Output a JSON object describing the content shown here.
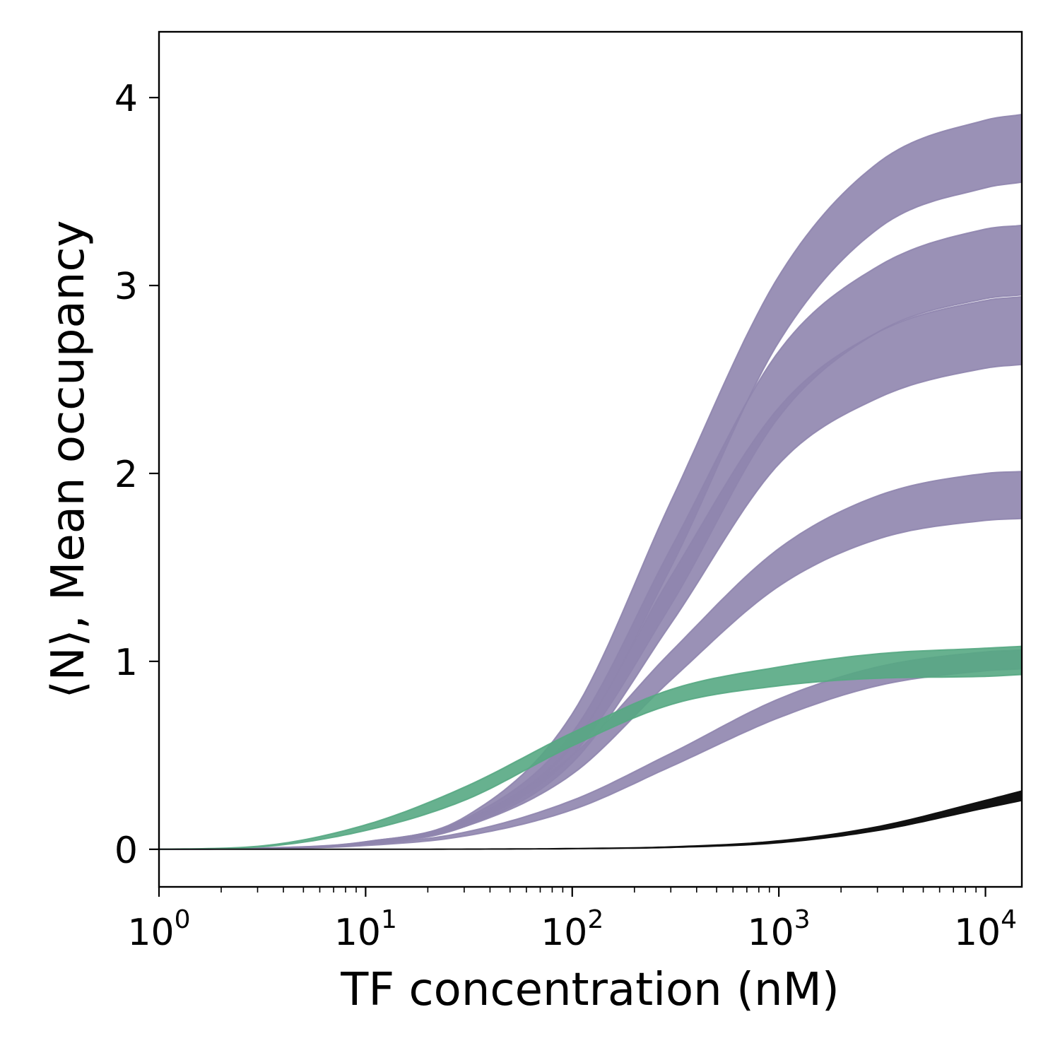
{
  "chart_data": {
    "type": "area",
    "xlabel": "TF concentration (nM)",
    "ylabel": "⟨N⟩, Mean occupancy",
    "xscale": "log",
    "xlim": [
      1,
      15000
    ],
    "ylim": [
      -0.2,
      4.35
    ],
    "grid": false,
    "x_ticks": [
      {
        "value": 1,
        "base": "10",
        "exp": "0"
      },
      {
        "value": 10,
        "base": "10",
        "exp": "1"
      },
      {
        "value": 100,
        "base": "10",
        "exp": "2"
      },
      {
        "value": 1000,
        "base": "10",
        "exp": "3"
      },
      {
        "value": 10000,
        "base": "10",
        "exp": "4"
      }
    ],
    "y_ticks": [
      {
        "value": 0,
        "label": "0"
      },
      {
        "value": 1,
        "label": "1"
      },
      {
        "value": 2,
        "label": "2"
      },
      {
        "value": 3,
        "label": "3"
      },
      {
        "value": 4,
        "label": "4"
      }
    ],
    "colors": {
      "purple": "#8f85ae",
      "green": "#56a883",
      "black": "#111111"
    },
    "x": [
      1,
      3,
      10,
      30,
      100,
      300,
      1000,
      3000,
      10000,
      15000
    ],
    "series": [
      {
        "color": "purple",
        "opacity": 0.9,
        "lower": [
          0,
          0.004,
          0.03,
          0.14,
          0.55,
          1.5,
          2.7,
          3.3,
          3.52,
          3.55
        ],
        "upper": [
          0,
          0.006,
          0.04,
          0.17,
          0.72,
          1.85,
          3.05,
          3.65,
          3.88,
          3.91
        ]
      },
      {
        "color": "purple",
        "opacity": 0.9,
        "lower": [
          0,
          0.004,
          0.03,
          0.13,
          0.5,
          1.3,
          2.3,
          2.75,
          2.93,
          2.95
        ],
        "upper": [
          0,
          0.006,
          0.04,
          0.16,
          0.62,
          1.6,
          2.65,
          3.1,
          3.3,
          3.32
        ]
      },
      {
        "color": "purple",
        "opacity": 0.9,
        "lower": [
          0,
          0.004,
          0.025,
          0.12,
          0.46,
          1.2,
          2.05,
          2.4,
          2.56,
          2.58
        ],
        "upper": [
          0,
          0.005,
          0.035,
          0.15,
          0.56,
          1.45,
          2.35,
          2.75,
          2.92,
          2.94
        ]
      },
      {
        "color": "purple",
        "opacity": 0.9,
        "lower": [
          0,
          0.004,
          0.03,
          0.12,
          0.4,
          0.9,
          1.4,
          1.65,
          1.75,
          1.76
        ],
        "upper": [
          0,
          0.005,
          0.035,
          0.15,
          0.5,
          1.05,
          1.6,
          1.88,
          2.0,
          2.01
        ]
      },
      {
        "color": "purple",
        "opacity": 0.9,
        "lower": [
          0,
          0.003,
          0.02,
          0.07,
          0.21,
          0.44,
          0.7,
          0.87,
          0.95,
          0.96
        ],
        "upper": [
          0,
          0.004,
          0.025,
          0.09,
          0.26,
          0.51,
          0.8,
          0.97,
          1.05,
          1.06
        ]
      },
      {
        "color": "green",
        "opacity": 0.9,
        "lower": [
          0,
          0.012,
          0.1,
          0.26,
          0.55,
          0.77,
          0.87,
          0.91,
          0.92,
          0.93
        ],
        "upper": [
          0,
          0.016,
          0.13,
          0.33,
          0.62,
          0.85,
          0.97,
          1.04,
          1.07,
          1.08
        ]
      },
      {
        "color": "black",
        "opacity": 1,
        "lower": [
          0,
          0,
          0.0002,
          0.0008,
          0.003,
          0.01,
          0.035,
          0.1,
          0.22,
          0.26
        ],
        "upper": [
          0,
          0,
          0.0003,
          0.001,
          0.004,
          0.013,
          0.045,
          0.12,
          0.26,
          0.31
        ]
      }
    ]
  }
}
